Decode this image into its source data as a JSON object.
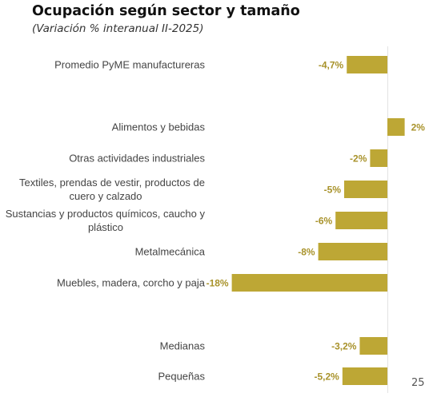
{
  "title": "Ocupación según sector y tamaño",
  "subtitle": "(Variación % interanual II-2025)",
  "page_number": "25",
  "colors": {
    "bar": "#BDA735",
    "value_label": "#A8922A",
    "axis": "#E3E3E3",
    "category_text": "#444444"
  },
  "chart_data": {
    "type": "bar",
    "orientation": "horizontal",
    "title": "Ocupación según sector y tamaño",
    "subtitle": "(Variación % interanual II-2025)",
    "categories": [
      [
        "Promedio PyME manufactureras"
      ],
      [
        "Alimentos y bebidas"
      ],
      [
        "Otras actividades industriales"
      ],
      [
        "Textiles, prendas de vestir, productos de",
        "cuero y calzado"
      ],
      [
        "Sustancias y productos químicos, caucho y",
        "plástico"
      ],
      [
        "Metalmecánica"
      ],
      [
        "Muebles, madera, corcho y paja"
      ],
      [
        "Medianas"
      ],
      [
        "Pequeñas"
      ]
    ],
    "values": [
      -4.7,
      2,
      -2,
      -5,
      -6,
      -8,
      -18,
      -3.2,
      -5.2
    ],
    "value_labels": [
      "-4,7%",
      "2%",
      "-2%",
      "-5%",
      "-6%",
      "-8%",
      "-18%",
      "-3,2%",
      "-5,2%"
    ],
    "xlim": [
      -18,
      2
    ],
    "grid": false,
    "legend": false
  }
}
